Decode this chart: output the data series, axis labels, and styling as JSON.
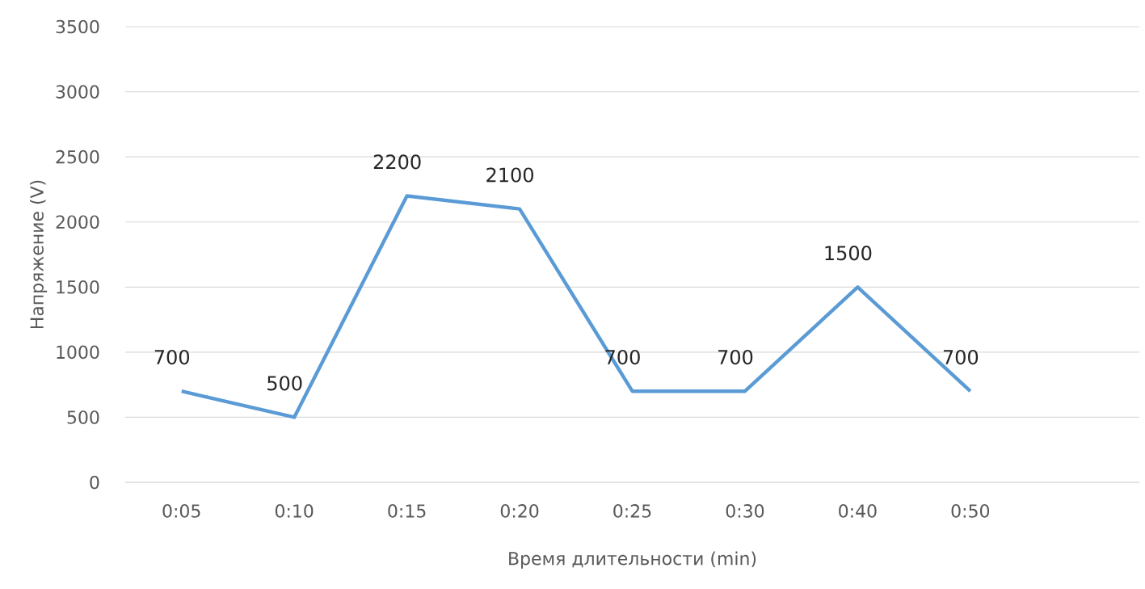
{
  "chart_data": {
    "type": "line",
    "xlabel": "Время длительности (min)",
    "ylabel": "Напряжение (V)",
    "categories": [
      "0:05",
      "0:10",
      "0:15",
      "0:20",
      "0:25",
      "0:30",
      "0:40",
      "0:50",
      null
    ],
    "series": [
      {
        "color": "#5b9bd5",
        "values": [
          700,
          500,
          2200,
          2100,
          700,
          700,
          1500,
          700,
          null
        ]
      }
    ],
    "ylim": [
      0,
      3500
    ],
    "yticks": [
      0,
      500,
      1000,
      1500,
      2000,
      2500,
      3000,
      3500
    ],
    "grid": "y",
    "data_labels": true,
    "marker": "none",
    "line_style": "solid"
  }
}
